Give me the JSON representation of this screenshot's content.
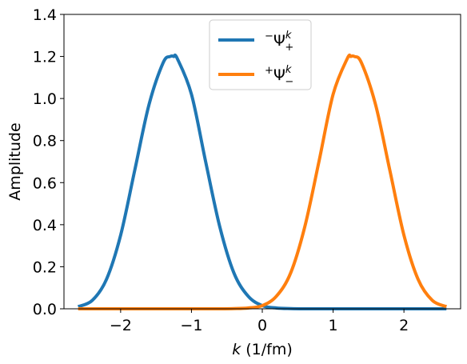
{
  "chart_data": {
    "type": "line",
    "title": "",
    "xlabel_var": "k",
    "xlabel_unit": " (1/fm)",
    "ylabel": "Amplitude",
    "xlim": [
      -2.8,
      2.8
    ],
    "ylim": [
      0.0,
      1.4
    ],
    "xticks": [
      -2,
      -1,
      0,
      1,
      2
    ],
    "xtick_labels": [
      "−2",
      "−1",
      "0",
      "1",
      "2"
    ],
    "yticks": [
      0.0,
      0.2,
      0.4,
      0.6,
      0.8,
      1.0,
      1.2,
      1.4
    ],
    "ytick_labels": [
      "0.0",
      "0.2",
      "0.4",
      "0.6",
      "0.8",
      "1.0",
      "1.2",
      "1.4"
    ],
    "legend_position": "top-center",
    "x": [
      -2.6,
      -2.4,
      -2.2,
      -2.0,
      -1.8,
      -1.6,
      -1.4,
      -1.3,
      -1.25,
      -1.2,
      -1.0,
      -0.8,
      -0.6,
      -0.4,
      -0.2,
      0.0,
      0.2,
      0.4,
      0.6,
      0.8,
      1.0,
      1.2,
      1.25,
      1.3,
      1.4,
      1.6,
      1.8,
      2.0,
      2.2,
      2.4,
      2.6
    ],
    "series": [
      {
        "name_pre": "−",
        "name_sym": "Ψ",
        "name_sup": "k",
        "name_sub": "+",
        "color": "#1f77b4",
        "values": [
          0.01,
          0.04,
          0.14,
          0.35,
          0.66,
          0.97,
          1.17,
          1.2,
          1.2,
          1.19,
          1.02,
          0.7,
          0.39,
          0.17,
          0.06,
          0.015,
          0.004,
          0.001,
          0.0,
          0.0,
          0.0,
          0.0,
          0.0,
          0.0,
          0.0,
          0.0,
          0.0,
          0.0,
          0.0,
          0.0,
          0.0
        ]
      },
      {
        "name_pre": "+",
        "name_sym": "Ψ",
        "name_sup": "k",
        "name_sub": "−",
        "color": "#ff7f0e",
        "values": [
          0.0,
          0.0,
          0.0,
          0.0,
          0.0,
          0.0,
          0.0,
          0.0,
          0.0,
          0.0,
          0.0,
          0.0,
          0.0,
          0.001,
          0.004,
          0.015,
          0.06,
          0.17,
          0.39,
          0.7,
          1.02,
          1.19,
          1.2,
          1.2,
          1.17,
          0.97,
          0.66,
          0.35,
          0.14,
          0.04,
          0.01
        ]
      }
    ]
  }
}
